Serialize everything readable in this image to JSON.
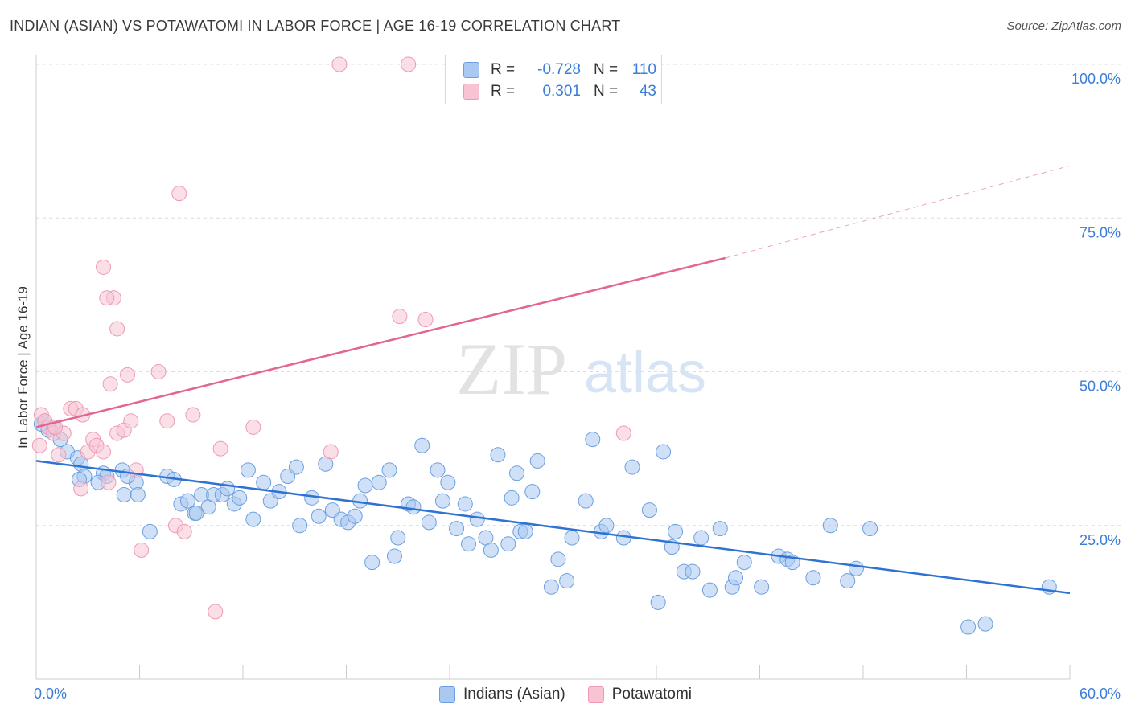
{
  "title": "INDIAN (ASIAN) VS POTAWATOMI IN LABOR FORCE | AGE 16-19 CORRELATION CHART",
  "source": "Source: ZipAtlas.com",
  "watermark": {
    "zip": "ZIP",
    "atlas": "atlas"
  },
  "legend_top": {
    "rows": [
      {
        "r_label": "R =",
        "r_value": "-0.728",
        "n_label": "N =",
        "n_value": "110"
      },
      {
        "r_label": "R =",
        "r_value": "0.301",
        "n_label": "N =",
        "n_value": "43"
      }
    ]
  },
  "colors": {
    "indian_fill": "#a9c9f0",
    "indian_stroke": "#6b9fe0",
    "indian_line": "#2e72d2",
    "pota_fill": "#f8c4d4",
    "pota_stroke": "#ee9ab5",
    "pota_line": "#e2668f",
    "grid": "#dcdcdc",
    "axis_text": "#3b7dd8"
  },
  "chart_data": {
    "type": "scatter",
    "title": "INDIAN (ASIAN) VS POTAWATOMI IN LABOR FORCE | AGE 16-19 CORRELATION CHART",
    "xlabel": "",
    "ylabel": "In Labor Force | Age 16-19",
    "xlim": [
      0,
      60
    ],
    "ylim": [
      0,
      105
    ],
    "x_tick_labels": [
      "0.0%",
      "60.0%"
    ],
    "y_ticks": [
      25,
      50,
      75,
      100
    ],
    "y_tick_labels": [
      "25.0%",
      "50.0%",
      "75.0%",
      "100.0%"
    ],
    "grid": "horizontal dashed",
    "legend": [
      "Indians (Asian)",
      "Potawatomi"
    ],
    "legend_position": "bottom",
    "series": [
      {
        "name": "Indians (Asian)",
        "r": -0.728,
        "n": 110,
        "trend": {
          "x0": 0,
          "y0": 35.5,
          "x1": 60,
          "y1": 14.0
        },
        "points": [
          [
            0.3,
            41.5
          ],
          [
            0.5,
            42
          ],
          [
            0.7,
            40.5
          ],
          [
            1,
            41
          ],
          [
            1.4,
            39
          ],
          [
            1.8,
            37
          ],
          [
            2.4,
            36
          ],
          [
            2.6,
            35
          ],
          [
            2.8,
            33
          ],
          [
            3.9,
            33.5
          ],
          [
            2.5,
            32.5
          ],
          [
            4.1,
            33
          ],
          [
            5,
            34
          ],
          [
            5.1,
            30
          ],
          [
            5.8,
            32
          ],
          [
            5.9,
            30
          ],
          [
            6.6,
            24
          ],
          [
            7.6,
            33
          ],
          [
            8,
            32.5
          ],
          [
            8.4,
            28.5
          ],
          [
            8.8,
            29
          ],
          [
            9.2,
            27
          ],
          [
            9.6,
            30
          ],
          [
            10,
            28
          ],
          [
            10.3,
            30
          ],
          [
            10.8,
            30
          ],
          [
            11.1,
            31
          ],
          [
            11.5,
            28.5
          ],
          [
            11.8,
            29.5
          ],
          [
            12.3,
            34
          ],
          [
            12.6,
            26
          ],
          [
            13.2,
            32
          ],
          [
            13.6,
            29
          ],
          [
            14.1,
            30.5
          ],
          [
            14.6,
            33
          ],
          [
            15.1,
            34.5
          ],
          [
            15.3,
            25
          ],
          [
            16,
            29.5
          ],
          [
            16.4,
            26.5
          ],
          [
            16.8,
            35
          ],
          [
            17.2,
            27.5
          ],
          [
            17.7,
            26
          ],
          [
            18.1,
            25.5
          ],
          [
            18.5,
            26.5
          ],
          [
            18.8,
            29
          ],
          [
            19.1,
            31.5
          ],
          [
            19.5,
            19
          ],
          [
            19.9,
            32
          ],
          [
            20.5,
            34
          ],
          [
            20.8,
            20
          ],
          [
            21,
            23
          ],
          [
            21.6,
            28.5
          ],
          [
            21.9,
            28
          ],
          [
            22.4,
            38
          ],
          [
            22.8,
            25.5
          ],
          [
            23.3,
            34
          ],
          [
            23.6,
            29
          ],
          [
            23.9,
            32
          ],
          [
            24.4,
            24.5
          ],
          [
            24.9,
            28.5
          ],
          [
            25.1,
            22
          ],
          [
            25.6,
            26
          ],
          [
            26.1,
            23
          ],
          [
            26.4,
            21
          ],
          [
            26.8,
            36.5
          ],
          [
            27.4,
            22
          ],
          [
            27.6,
            29.5
          ],
          [
            27.9,
            33.5
          ],
          [
            28.1,
            24
          ],
          [
            28.4,
            24
          ],
          [
            28.8,
            30.5
          ],
          [
            29.1,
            35.5
          ],
          [
            29.9,
            15
          ],
          [
            30.3,
            19.5
          ],
          [
            30.8,
            16
          ],
          [
            31.1,
            23
          ],
          [
            31.9,
            29
          ],
          [
            32.3,
            39
          ],
          [
            32.8,
            24
          ],
          [
            33.1,
            25
          ],
          [
            34.1,
            23
          ],
          [
            34.6,
            34.5
          ],
          [
            35.6,
            27.5
          ],
          [
            36.1,
            12.5
          ],
          [
            36.9,
            21.5
          ],
          [
            37.1,
            24
          ],
          [
            37.6,
            17.5
          ],
          [
            38.1,
            17.5
          ],
          [
            38.6,
            23
          ],
          [
            39.1,
            14.5
          ],
          [
            39.7,
            24.5
          ],
          [
            40.4,
            15
          ],
          [
            40.6,
            16.5
          ],
          [
            41.1,
            19
          ],
          [
            42.1,
            15
          ],
          [
            43.1,
            20
          ],
          [
            43.6,
            19.5
          ],
          [
            43.9,
            19
          ],
          [
            45.1,
            16.5
          ],
          [
            46.1,
            25
          ],
          [
            47.1,
            16
          ],
          [
            47.6,
            18
          ],
          [
            48.4,
            24.5
          ],
          [
            54.1,
            8.5
          ],
          [
            55.1,
            9
          ],
          [
            58.8,
            15
          ],
          [
            36.4,
            37
          ],
          [
            3.6,
            32
          ],
          [
            5.3,
            33
          ],
          [
            9.3,
            27
          ]
        ]
      },
      {
        "name": "Potawatomi",
        "r": 0.301,
        "n": 43,
        "trend": {
          "x0": 0,
          "y0": 41.0,
          "x1": 40,
          "y1": 68.5,
          "dashed_to": {
            "x": 60,
            "y": 83.5
          }
        },
        "points": [
          [
            0.2,
            38
          ],
          [
            0.3,
            43
          ],
          [
            0.5,
            42
          ],
          [
            0.7,
            41
          ],
          [
            1,
            40
          ],
          [
            1.3,
            36.5
          ],
          [
            1.6,
            40
          ],
          [
            2,
            44
          ],
          [
            2.3,
            44
          ],
          [
            2.7,
            43
          ],
          [
            3,
            37
          ],
          [
            3.3,
            39
          ],
          [
            3.5,
            38
          ],
          [
            3.9,
            37
          ],
          [
            4.2,
            32
          ],
          [
            4.5,
            62
          ],
          [
            4.3,
            48
          ],
          [
            4.7,
            40
          ],
          [
            5.1,
            40.5
          ],
          [
            5.5,
            42
          ],
          [
            5.8,
            34
          ],
          [
            6.1,
            21
          ],
          [
            3.9,
            67
          ],
          [
            4.1,
            62
          ],
          [
            4.7,
            57
          ],
          [
            5.3,
            49.5
          ],
          [
            7.1,
            50
          ],
          [
            7.6,
            42
          ],
          [
            8.1,
            25
          ],
          [
            8.6,
            24
          ],
          [
            9.1,
            43
          ],
          [
            10.4,
            11
          ],
          [
            10.7,
            37.5
          ],
          [
            12.6,
            41
          ],
          [
            17.1,
            37
          ],
          [
            21.1,
            59
          ],
          [
            22.6,
            58.5
          ],
          [
            34.1,
            40
          ],
          [
            17.6,
            100
          ],
          [
            21.6,
            100
          ],
          [
            8.3,
            79
          ],
          [
            1.1,
            41
          ],
          [
            2.6,
            31
          ]
        ]
      }
    ]
  },
  "legend_bottom": {
    "items": [
      {
        "label": "Indians (Asian)"
      },
      {
        "label": "Potawatomi"
      }
    ]
  }
}
